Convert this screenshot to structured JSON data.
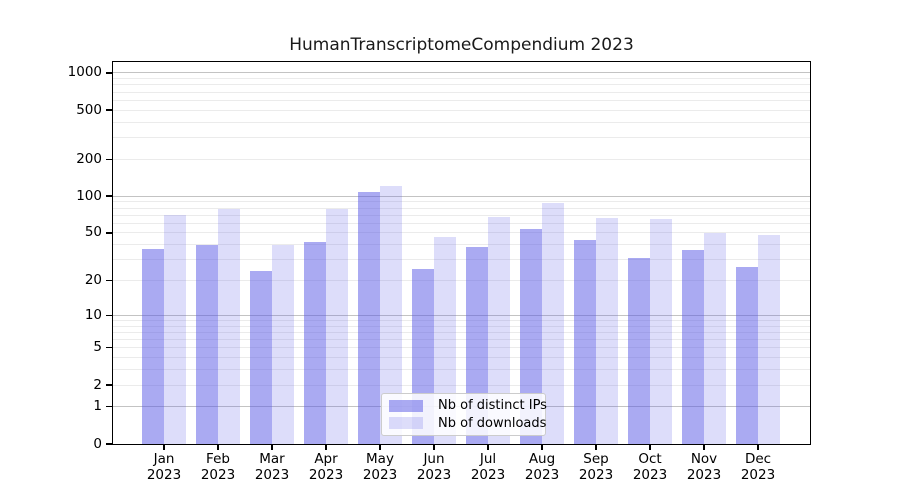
{
  "chart_data": {
    "type": "bar",
    "title": "HumanTranscriptomeCompendium 2023",
    "categories": [
      "Jan 2023",
      "Feb 2023",
      "Mar 2023",
      "Apr 2023",
      "May 2023",
      "Jun 2023",
      "Jul 2023",
      "Aug 2023",
      "Sep 2023",
      "Oct 2023",
      "Nov 2023",
      "Dec 2023"
    ],
    "series": [
      {
        "name": "Nb of distinct IPs",
        "values": [
          37,
          40,
          24,
          42,
          108,
          25,
          38,
          54,
          44,
          31,
          36,
          26
        ]
      },
      {
        "name": "Nb of downloads",
        "values": [
          70,
          79,
          40,
          78,
          120,
          46,
          67,
          88,
          66,
          65,
          50,
          48
        ]
      }
    ],
    "yscale": "log1p",
    "y_ticks": [
      0,
      1,
      2,
      5,
      10,
      20,
      50,
      100,
      200,
      500,
      1000
    ],
    "y_minor_gridlines": [
      2,
      3,
      4,
      5,
      6,
      7,
      8,
      9,
      20,
      30,
      40,
      50,
      60,
      70,
      80,
      90,
      200,
      300,
      400,
      500,
      600,
      700,
      800,
      900
    ],
    "y_major_gridlines": [
      1,
      10,
      100,
      1000
    ],
    "ylim": [
      0,
      1230
    ],
    "grid": true,
    "legend_position": "lower-center"
  },
  "colors": {
    "ips_bar": "#a6a6f1",
    "downloads_bar": "#dbdbf9",
    "bar_base_rgba": "rgba(85,85,230,1)",
    "ips_alpha": 0.5,
    "downloads_alpha": 0.2,
    "grid_major": "#c3c3c3",
    "grid_minor": "#ebebeb",
    "axis": "#000000",
    "background": "#ffffff"
  }
}
